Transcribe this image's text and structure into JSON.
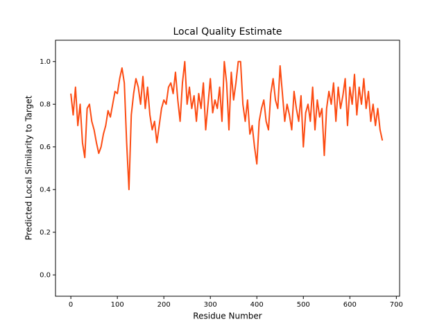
{
  "chart_data": {
    "type": "line",
    "title": "Local Quality Estimate",
    "x_label": "Residue Number",
    "y_label": "Predicted Local Similarity to Target",
    "color": "#fc4b12",
    "x": [
      0,
      5,
      10,
      15,
      20,
      25,
      30,
      35,
      40,
      45,
      50,
      55,
      60,
      65,
      70,
      75,
      80,
      85,
      90,
      95,
      100,
      105,
      110,
      115,
      120,
      125,
      130,
      135,
      140,
      145,
      150,
      155,
      160,
      165,
      170,
      175,
      180,
      185,
      190,
      195,
      200,
      205,
      210,
      215,
      220,
      225,
      230,
      235,
      240,
      245,
      250,
      255,
      260,
      265,
      270,
      275,
      280,
      285,
      290,
      295,
      300,
      305,
      310,
      315,
      320,
      325,
      330,
      335,
      340,
      345,
      350,
      355,
      360,
      365,
      370,
      375,
      380,
      385,
      390,
      395,
      400,
      405,
      410,
      415,
      420,
      425,
      430,
      435,
      440,
      445,
      450,
      455,
      460,
      465,
      470,
      475,
      480,
      485,
      490,
      495,
      500,
      505,
      510,
      515,
      520,
      525,
      530,
      535,
      540,
      545,
      550,
      555,
      560,
      565,
      570,
      575,
      580,
      585,
      590,
      595,
      600,
      605,
      610,
      615,
      620,
      625,
      630,
      635,
      640,
      645,
      650,
      655,
      660,
      665,
      670
    ],
    "values": [
      0.85,
      0.75,
      0.88,
      0.7,
      0.8,
      0.62,
      0.55,
      0.78,
      0.8,
      0.72,
      0.68,
      0.62,
      0.57,
      0.6,
      0.66,
      0.7,
      0.77,
      0.74,
      0.8,
      0.86,
      0.85,
      0.92,
      0.97,
      0.9,
      0.62,
      0.4,
      0.75,
      0.85,
      0.92,
      0.88,
      0.8,
      0.93,
      0.78,
      0.88,
      0.75,
      0.68,
      0.72,
      0.62,
      0.7,
      0.78,
      0.82,
      0.8,
      0.88,
      0.9,
      0.85,
      0.95,
      0.82,
      0.72,
      0.9,
      1.0,
      0.8,
      0.88,
      0.78,
      0.84,
      0.72,
      0.85,
      0.78,
      0.9,
      0.68,
      0.8,
      0.92,
      0.76,
      0.82,
      0.78,
      0.88,
      0.72,
      1.0,
      0.9,
      0.68,
      0.95,
      0.82,
      0.9,
      1.0,
      1.0,
      0.8,
      0.72,
      0.82,
      0.66,
      0.7,
      0.6,
      0.52,
      0.72,
      0.78,
      0.82,
      0.72,
      0.68,
      0.85,
      0.92,
      0.82,
      0.78,
      0.98,
      0.85,
      0.72,
      0.8,
      0.75,
      0.68,
      0.86,
      0.78,
      0.72,
      0.84,
      0.6,
      0.76,
      0.8,
      0.72,
      0.88,
      0.68,
      0.82,
      0.74,
      0.78,
      0.56,
      0.78,
      0.86,
      0.8,
      0.9,
      0.72,
      0.88,
      0.78,
      0.84,
      0.92,
      0.7,
      0.88,
      0.8,
      0.94,
      0.75,
      0.88,
      0.8,
      0.92,
      0.78,
      0.86,
      0.72,
      0.8,
      0.7,
      0.78,
      0.68,
      0.63
    ],
    "xlim": [
      -33,
      707
    ],
    "ylim": [
      -0.1,
      1.1
    ],
    "xticks": [
      0,
      100,
      200,
      300,
      400,
      500,
      600,
      700
    ],
    "yticks": [
      {
        "value": 0.0,
        "label": "0.0"
      },
      0.2,
      0.4,
      0.6,
      0.8,
      {
        "value": 1.0,
        "label": "1.0"
      }
    ]
  }
}
